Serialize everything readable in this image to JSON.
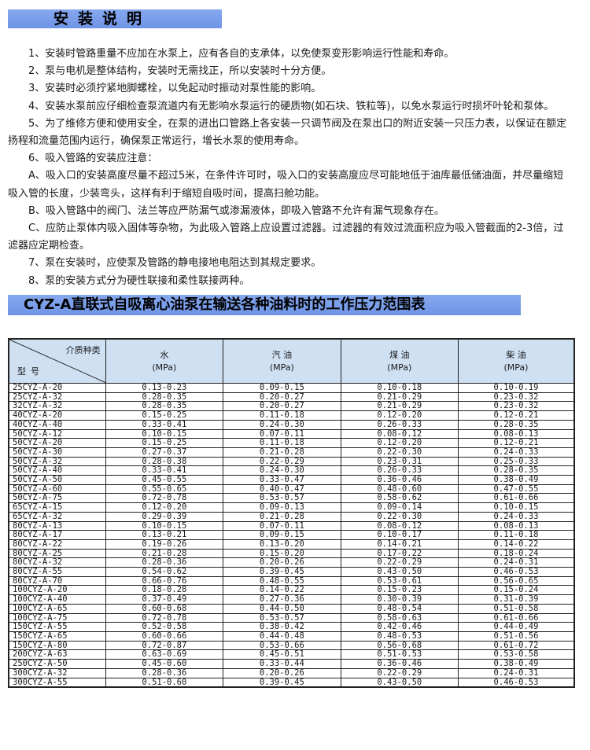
{
  "install_section": {
    "title": "安装说明",
    "items": [
      "1、安装时管路重量不应加在水泵上，应有各自的支承体，以免使泵变形影响运行性能和寿命。",
      "2、泵与电机是整体结构，安装时无需找正，所以安装时十分方便。",
      "3、安装时必须拧紧地脚螺栓，以免起动时振动对泵性能的影响。",
      "4、安装水泵前应仔细检查泵流道内有无影响水泵运行的硬质物(如石块、铁粒等)，以免水泵运行时损坏叶轮和泵体。",
      "5、为了维修方便和使用安全，在泵的进出口管路上各安装一只调节阀及在泵出口的附近安装一只压力表，以保证在额定扬程和流量范围内运行，确保泵正常运行，增长水泵的使用寿命。",
      "6、吸入管路的安装应注意：",
      "A、吸入口的安装高度尽量不超过5米，在条件许可时，吸入口的安装高度应尽可能地低于油库最低储油面，并尽量缩短吸入管的长度，少装弯头，这样有利于缩短自吸时间，提高扫舱功能。",
      "B、吸入管路中的阀门、法兰等应严防漏气或渗漏液体，即吸入管路不允许有漏气现象存在。",
      "C、应防止泵体内吸入固体等杂物，为此吸入管路上应设置过滤器。过滤器的有效过流面积应为吸入管截面的2-3倍，过滤器应定期检查。",
      "7、泵在安装时，应使泵及管路的静电接地电阻达到其规定要求。",
      "8、泵的安装方式分为硬性联接和柔性联接两种。"
    ]
  },
  "pressure_section": {
    "title": "CYZ-A直联式自吸离心油泵在输送各种油料时的工作压力范围表",
    "corner_top": "介质种类",
    "corner_bottom": "型号",
    "columns": [
      {
        "name": "水",
        "unit": "(MPa)"
      },
      {
        "name": "汽 油",
        "unit": "(MPa)"
      },
      {
        "name": "煤 油",
        "unit": "(MPa)"
      },
      {
        "name": "柴 油",
        "unit": "(MPa)"
      }
    ],
    "rows": [
      [
        "25CYZ-A-20",
        "0.13-0.23",
        "0.09-0.15",
        "0.10-0.18",
        "0.10-0.19"
      ],
      [
        "25CYZ-A-32",
        "0.28-0.35",
        "0.20-0.27",
        "0.21-0.29",
        "0.23-0.32"
      ],
      [
        "32CYZ-A-32",
        "0.28-0.35",
        "0.20-0.27",
        "0.21-0.29",
        "0.23-0.32"
      ],
      [
        "40CYZ-A-20",
        "0.15-0.25",
        "0.11-0.18",
        "0.12-0.20",
        "0.12-0.21"
      ],
      [
        "40CYZ-A-40",
        "0.33-0.41",
        "0.24-0.30",
        "0.26-0.33",
        "0.28-0.35"
      ],
      [
        "50CYZ-A-12",
        "0.10-0.15",
        "0.07-0.11",
        "0.08-0.12",
        "0.08-0.13"
      ],
      [
        "50CYZ-A-20",
        "0.15-0.25",
        "0.11-0.18",
        "0.12-0.20",
        "0.12-0.21"
      ],
      [
        "50CYZ-A-30",
        "0.27-0.37",
        "0.21-0.28",
        "0.22-0.30",
        "0.24-0.33"
      ],
      [
        "50CYZ-A-32",
        "0.28-0.38",
        "0.22-0.29",
        "0.23-0.31",
        "0.25-0.33"
      ],
      [
        "50CYZ-A-40",
        "0.33-0.41",
        "0.24-0.30",
        "0.26-0.33",
        "0.28-0.35"
      ],
      [
        "50CYZ-A-50",
        "0.45-0.55",
        "0.33-0.47",
        "0.36-0.46",
        "0.38-0.49"
      ],
      [
        "50CYZ-A-60",
        "0.55-0.65",
        "0.40-0.47",
        "0.48-0.60",
        "0.47-0.55"
      ],
      [
        "50CYZ-A-75",
        "0.72-0.78",
        "0.53-0.57",
        "0.58-0.62",
        "0.61-0.66"
      ],
      [
        "65CYZ-A-15",
        "0.12-0.20",
        "0.09-0.13",
        "0.09-0.14",
        "0.10-0.15"
      ],
      [
        "65CYZ-A-32",
        "0.29-0.39",
        "0.21-0.28",
        "0.22-0.30",
        "0.24-0.33"
      ],
      [
        "80CYZ-A-13",
        "0.10-0.15",
        "0.07-0.11",
        "0.08-0.12",
        "0.08-0.13"
      ],
      [
        "80CYZ-A-17",
        "0.13-0.21",
        "0.09-0.15",
        "0.10-0.17",
        "0.11-0.18"
      ],
      [
        "80CYZ-A-22",
        "0.19-0.26",
        "0.13-0.20",
        "0.14-0.21",
        "0.14-0.22"
      ],
      [
        "80CYZ-A-25",
        "0.21-0.28",
        "0.15-0.20",
        "0.17-0.22",
        "0.18-0.24"
      ],
      [
        "80CYZ-A-32",
        "0.28-0.36",
        "0.20-0.26",
        "0.22-0.29",
        "0.24-0.31"
      ],
      [
        "80CYZ-A-55",
        "0.54-0.62",
        "0.39-0.45",
        "0.43-0.50",
        "0.46-0.53"
      ],
      [
        "80CYZ-A-70",
        "0.66-0.76",
        "0.48-0.55",
        "0.53-0.61",
        "0.56-0.65"
      ],
      [
        "100CYZ-A-20",
        "0.18-0.28",
        "0.14-0.22",
        "0.15-0.23",
        "0.15-0.24"
      ],
      [
        "100CYZ-A-40",
        "0.37-0.49",
        "0.27-0.36",
        "0.30-0.39",
        "0.31-0.39"
      ],
      [
        "100CYZ-A-65",
        "0.60-0.68",
        "0.44-0.50",
        "0.48-0.54",
        "0.51-0.58"
      ],
      [
        "100CYZ-A-75",
        "0.72-0.78",
        "0.53-0.57",
        "0.58-0.63",
        "0.61-0.66"
      ],
      [
        "150CYZ-A-55",
        "0.52-0.58",
        "0.38-0.42",
        "0.42-0.46",
        "0.44-0.49"
      ],
      [
        "150CYZ-A-65",
        "0.60-0.66",
        "0.44-0.48",
        "0.48-0.53",
        "0.51-0.56"
      ],
      [
        "150CYZ-A-80",
        "0.72-0.87",
        "0.53-0.66",
        "0.56-0.68",
        "0.61-0.72"
      ],
      [
        "200CYZ-A-63",
        "0.63-0.69",
        "0.45-0.51",
        "0.51-0.53",
        "0.53-0.58"
      ],
      [
        "250CYZ-A-50",
        "0.45-0.60",
        "0.33-0.44",
        "0.36-0.46",
        "0.38-0.49"
      ],
      [
        "300CYZ-A-32",
        "0.28-0.36",
        "0.20-0.26",
        "0.22-0.29",
        "0.24-0.31"
      ],
      [
        "300CYZ-A-55",
        "0.51-0.60",
        "0.39-0.45",
        "0.43-0.50",
        "0.46-0.53"
      ]
    ]
  },
  "colors": {
    "section_bar": "#7a9eea",
    "table_header": "#cfe0f3"
  }
}
